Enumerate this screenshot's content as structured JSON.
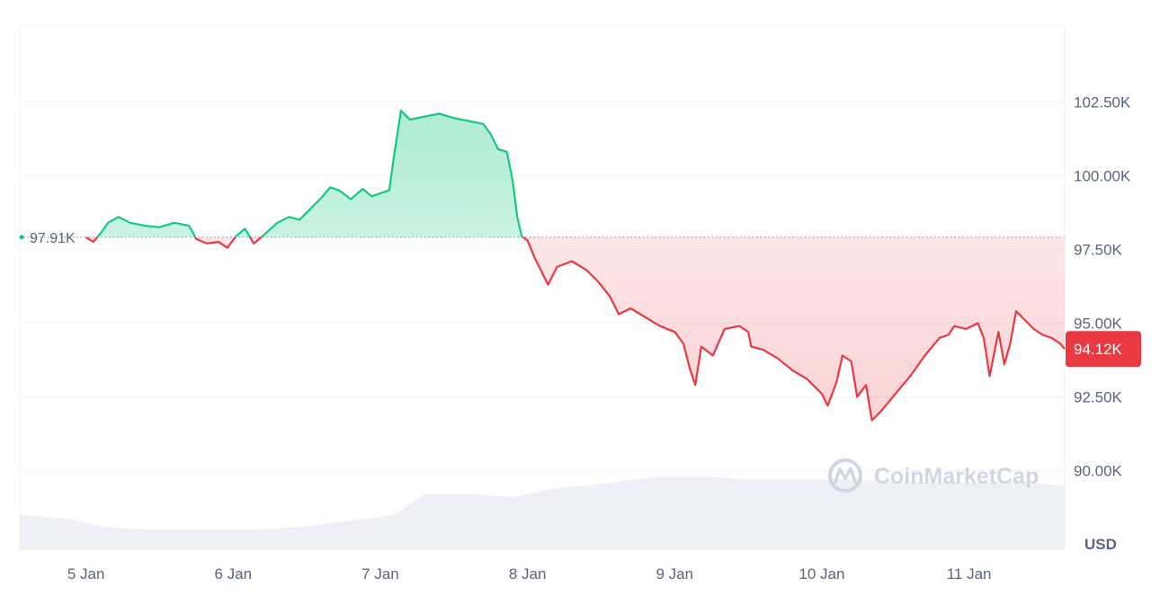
{
  "chart_data": {
    "type": "area",
    "x_label": "",
    "y_label": "",
    "x_ticks": [
      "5 Jan",
      "6 Jan",
      "7 Jan",
      "8 Jan",
      "9 Jan",
      "10 Jan",
      "11 Jan"
    ],
    "y_ticks": [
      "90.00K",
      "92.50K",
      "95.00K",
      "97.50K",
      "100.00K",
      "102.50K"
    ],
    "y_tick_values": [
      90000,
      92500,
      95000,
      97500,
      100000,
      102500
    ],
    "ylim": [
      87300,
      105100
    ],
    "xlim_days": [
      4.55,
      11.65
    ],
    "unit": "USD",
    "reference": {
      "value": 97910,
      "label": "97.91K"
    },
    "current": {
      "value": 94120,
      "label": "94.12K"
    },
    "colors": {
      "up": "#16c784",
      "down": "#ea3943",
      "grid": "#eff2f5",
      "volume": "#eef0f5",
      "text": "#58667e"
    },
    "grid": true,
    "price_series": {
      "name": "",
      "x_unit": "day of January",
      "points": [
        [
          5.0,
          97910
        ],
        [
          5.05,
          97750
        ],
        [
          5.1,
          98050
        ],
        [
          5.15,
          98400
        ],
        [
          5.22,
          98600
        ],
        [
          5.3,
          98400
        ],
        [
          5.4,
          98300
        ],
        [
          5.5,
          98250
        ],
        [
          5.6,
          98400
        ],
        [
          5.7,
          98300
        ],
        [
          5.75,
          97850
        ],
        [
          5.82,
          97700
        ],
        [
          5.9,
          97750
        ],
        [
          5.96,
          97550
        ],
        [
          6.02,
          97950
        ],
        [
          6.08,
          98200
        ],
        [
          6.14,
          97700
        ],
        [
          6.2,
          97950
        ],
        [
          6.3,
          98400
        ],
        [
          6.38,
          98600
        ],
        [
          6.45,
          98500
        ],
        [
          6.52,
          98850
        ],
        [
          6.6,
          99250
        ],
        [
          6.66,
          99600
        ],
        [
          6.72,
          99500
        ],
        [
          6.8,
          99200
        ],
        [
          6.88,
          99550
        ],
        [
          6.94,
          99300
        ],
        [
          7.06,
          99500
        ],
        [
          7.1,
          100900
        ],
        [
          7.14,
          102200
        ],
        [
          7.2,
          101900
        ],
        [
          7.3,
          102000
        ],
        [
          7.4,
          102100
        ],
        [
          7.5,
          101950
        ],
        [
          7.6,
          101850
        ],
        [
          7.7,
          101750
        ],
        [
          7.75,
          101400
        ],
        [
          7.8,
          100900
        ],
        [
          7.86,
          100800
        ],
        [
          7.9,
          99800
        ],
        [
          7.93,
          98600
        ],
        [
          7.96,
          97950
        ],
        [
          8.0,
          97800
        ],
        [
          8.05,
          97200
        ],
        [
          8.1,
          96700
        ],
        [
          8.14,
          96300
        ],
        [
          8.2,
          96900
        ],
        [
          8.3,
          97100
        ],
        [
          8.4,
          96800
        ],
        [
          8.48,
          96400
        ],
        [
          8.56,
          95900
        ],
        [
          8.62,
          95300
        ],
        [
          8.7,
          95500
        ],
        [
          8.8,
          95200
        ],
        [
          8.9,
          94900
        ],
        [
          9.0,
          94700
        ],
        [
          9.06,
          94300
        ],
        [
          9.1,
          93500
        ],
        [
          9.14,
          92900
        ],
        [
          9.18,
          94200
        ],
        [
          9.26,
          93900
        ],
        [
          9.34,
          94800
        ],
        [
          9.44,
          94900
        ],
        [
          9.5,
          94700
        ],
        [
          9.52,
          94200
        ],
        [
          9.6,
          94100
        ],
        [
          9.7,
          93800
        ],
        [
          9.8,
          93400
        ],
        [
          9.9,
          93100
        ],
        [
          10.0,
          92600
        ],
        [
          10.04,
          92200
        ],
        [
          10.1,
          93000
        ],
        [
          10.14,
          93900
        ],
        [
          10.2,
          93700
        ],
        [
          10.24,
          92500
        ],
        [
          10.3,
          92900
        ],
        [
          10.34,
          91700
        ],
        [
          10.4,
          92000
        ],
        [
          10.5,
          92600
        ],
        [
          10.6,
          93200
        ],
        [
          10.7,
          93900
        ],
        [
          10.8,
          94500
        ],
        [
          10.86,
          94600
        ],
        [
          10.9,
          94900
        ],
        [
          10.98,
          94800
        ],
        [
          11.02,
          94900
        ],
        [
          11.06,
          95000
        ],
        [
          11.1,
          94500
        ],
        [
          11.14,
          93200
        ],
        [
          11.2,
          94700
        ],
        [
          11.24,
          93600
        ],
        [
          11.28,
          94300
        ],
        [
          11.32,
          95400
        ],
        [
          11.38,
          95100
        ],
        [
          11.44,
          94800
        ],
        [
          11.5,
          94600
        ],
        [
          11.56,
          94500
        ],
        [
          11.62,
          94300
        ],
        [
          11.65,
          94120
        ]
      ]
    },
    "volume_series": {
      "name": "",
      "x_unit": "day of January",
      "points": [
        [
          4.55,
          88500
        ],
        [
          4.9,
          88350
        ],
        [
          5.1,
          88100
        ],
        [
          5.4,
          88000
        ],
        [
          5.8,
          88000
        ],
        [
          6.2,
          88000
        ],
        [
          6.5,
          88100
        ],
        [
          6.8,
          88300
        ],
        [
          7.1,
          88500
        ],
        [
          7.3,
          89200
        ],
        [
          7.6,
          89200
        ],
        [
          7.9,
          89100
        ],
        [
          8.2,
          89400
        ],
        [
          8.6,
          89600
        ],
        [
          8.9,
          89800
        ],
        [
          9.2,
          89800
        ],
        [
          9.5,
          89700
        ],
        [
          9.8,
          89700
        ],
        [
          10.2,
          89700
        ],
        [
          10.6,
          89600
        ],
        [
          11.0,
          89600
        ],
        [
          11.3,
          89600
        ],
        [
          11.65,
          89500
        ]
      ]
    }
  },
  "watermark": {
    "text": "CoinMarketCap"
  }
}
